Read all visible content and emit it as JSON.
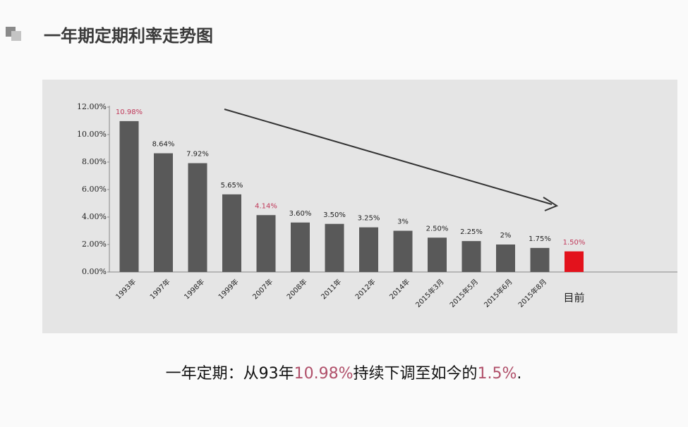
{
  "header": {
    "title": "一年期定期利率走势图"
  },
  "chart_data": {
    "type": "bar",
    "categories": [
      "1993年",
      "1997年",
      "1998年",
      "1999年",
      "2007年",
      "2008年",
      "2011年",
      "2012年",
      "2014年",
      "2015年3月",
      "2015年5月",
      "2015年6月",
      "2015年8月",
      "目前"
    ],
    "values": [
      10.98,
      8.64,
      7.92,
      5.65,
      4.14,
      3.6,
      3.5,
      3.25,
      3,
      2.5,
      2.25,
      2,
      1.75,
      1.5
    ],
    "value_labels": [
      "10.98%",
      "8.64%",
      "7.92%",
      "5.65%",
      "4.14%",
      "3.60%",
      "3.50%",
      "3.25%",
      "3%",
      "2.50%",
      "2.25%",
      "2%",
      "1.75%",
      "1.50%"
    ],
    "colors": [
      "#595959",
      "#595959",
      "#595959",
      "#595959",
      "#595959",
      "#595959",
      "#595959",
      "#595959",
      "#595959",
      "#595959",
      "#595959",
      "#595959",
      "#595959",
      "#e3121c"
    ],
    "value_label_colors": [
      "#c0395a",
      "#222222",
      "#222222",
      "#222222",
      "#c0395a",
      "#222222",
      "#222222",
      "#222222",
      "#222222",
      "#222222",
      "#222222",
      "#222222",
      "#222222",
      "#c0395a"
    ],
    "ylim": [
      0,
      12
    ],
    "yticks": [
      {
        "value": 0,
        "label": "0.00%"
      },
      {
        "value": 2,
        "label": "2.00%"
      },
      {
        "value": 4,
        "label": "4.00%"
      },
      {
        "value": 6,
        "label": "6.00%"
      },
      {
        "value": 8,
        "label": "8.00%"
      },
      {
        "value": 10,
        "label": "10.00%"
      },
      {
        "value": 12,
        "label": "12.00%"
      }
    ],
    "grid": false
  },
  "caption": {
    "parts": [
      {
        "text": "一年定期：从93年",
        "color": "#111111"
      },
      {
        "text": "10.98%",
        "color": "#b0506a"
      },
      {
        "text": "持续下调至如今的",
        "color": "#111111"
      },
      {
        "text": "1.5%",
        "color": "#b0506a"
      },
      {
        "text": ".",
        "color": "#111111"
      }
    ]
  }
}
